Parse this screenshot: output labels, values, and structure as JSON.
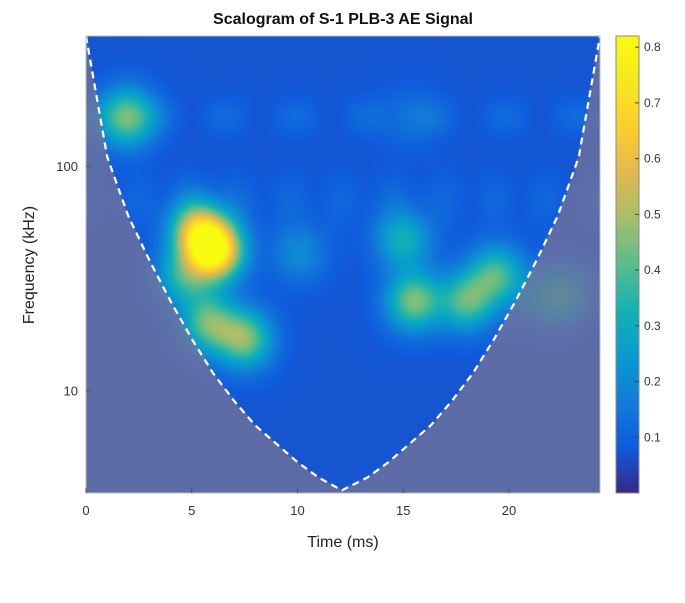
{
  "chart_data": {
    "type": "heatmap",
    "title": "Scalogram of S-1 PLB-3 AE Signal",
    "xlabel": "Time (ms)",
    "ylabel": "Frequency (kHz)",
    "xlim": [
      0,
      24.3
    ],
    "ylim": [
      3.5,
      380
    ],
    "yscale": "log",
    "x_ticks": [
      0,
      5,
      10,
      15,
      20
    ],
    "x_tick_labels": [
      "0",
      "5",
      "10",
      "15",
      "20"
    ],
    "y_ticks": [
      10,
      100
    ],
    "y_tick_labels": [
      "10",
      "100"
    ],
    "colorbar": {
      "colormap": "parula",
      "range": [
        0,
        0.82
      ],
      "ticks": [
        0.1,
        0.2,
        0.3,
        0.4,
        0.5,
        0.6,
        0.7,
        0.8
      ],
      "tick_labels": [
        "0.1",
        "0.2",
        "0.3",
        "0.4",
        "0.5",
        "0.6",
        "0.7",
        "0.8"
      ]
    },
    "background_level": 0.07,
    "features": [
      {
        "t": 6.1,
        "f": 42,
        "peak": 0.8
      },
      {
        "t": 5.3,
        "f": 52,
        "peak": 0.55
      },
      {
        "t": 1.9,
        "f": 165,
        "peak": 0.45
      },
      {
        "t": 5.8,
        "f": 20,
        "peak": 0.42
      },
      {
        "t": 7.5,
        "f": 17,
        "peak": 0.45
      },
      {
        "t": 4.6,
        "f": 32,
        "peak": 0.32
      },
      {
        "t": 10.1,
        "f": 41,
        "peak": 0.2
      },
      {
        "t": 15.5,
        "f": 25,
        "peak": 0.45
      },
      {
        "t": 18.0,
        "f": 25,
        "peak": 0.4
      },
      {
        "t": 19.4,
        "f": 33,
        "peak": 0.38
      },
      {
        "t": 15.0,
        "f": 47,
        "peak": 0.32
      },
      {
        "t": 22.6,
        "f": 27,
        "peak": 0.3
      },
      {
        "t": 21.5,
        "f": 25,
        "peak": 0.18
      },
      {
        "t": 15.3,
        "f": 165,
        "peak": 0.14
      }
    ],
    "cone_of_influence": {
      "color": "#ffffff",
      "style": "dashed",
      "left": [
        [
          0,
          380
        ],
        [
          1,
          110
        ],
        [
          2,
          60
        ],
        [
          3,
          38
        ],
        [
          4,
          25
        ],
        [
          5,
          17
        ],
        [
          6,
          12
        ],
        [
          7,
          9
        ],
        [
          8,
          7
        ],
        [
          9,
          5.8
        ],
        [
          10,
          4.8
        ],
        [
          11,
          4.1
        ],
        [
          12.1,
          3.6
        ]
      ],
      "right": [
        [
          12.1,
          3.6
        ],
        [
          13.3,
          4.1
        ],
        [
          14.3,
          4.8
        ],
        [
          15.3,
          5.8
        ],
        [
          16.3,
          7
        ],
        [
          17.3,
          9
        ],
        [
          18.3,
          12
        ],
        [
          19.3,
          17
        ],
        [
          20.3,
          25
        ],
        [
          21.3,
          38
        ],
        [
          22.3,
          60
        ],
        [
          23.3,
          110
        ],
        [
          24.3,
          380
        ]
      ]
    },
    "grid": false
  },
  "colors": {
    "masked_region": "#7c7494"
  }
}
